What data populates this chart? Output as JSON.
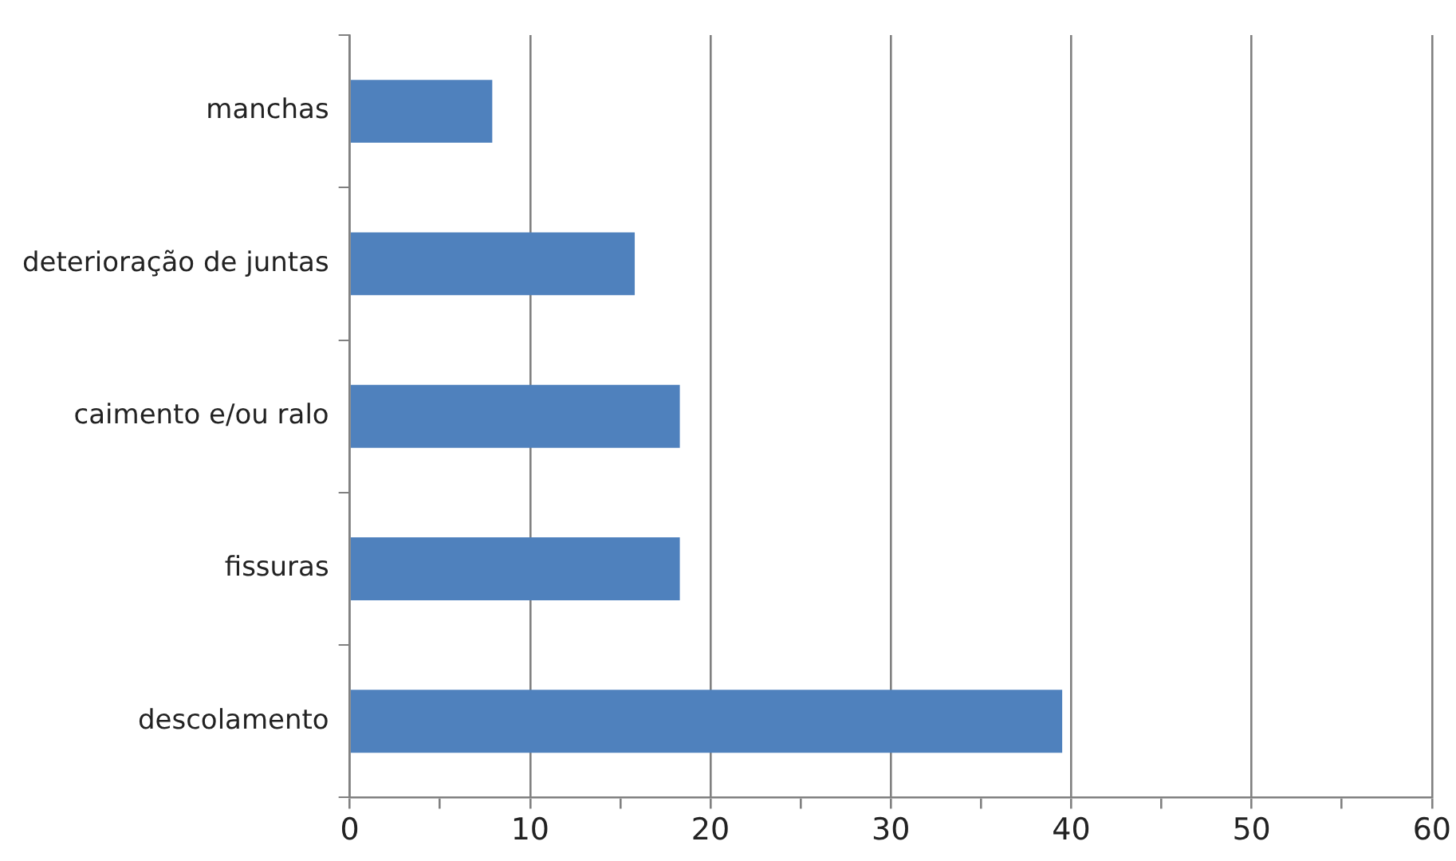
{
  "chart_data": {
    "type": "bar",
    "orientation": "horizontal",
    "categories": [
      "manchas",
      "deterioração de juntas",
      "caimento e/ou ralo",
      "fissuras",
      "descolamento"
    ],
    "values": [
      7.9,
      15.8,
      18.3,
      18.3,
      39.5
    ],
    "color": "#4f81bd",
    "xlim": [
      0,
      60
    ],
    "xticks": [
      0,
      {
        "value": 5,
        "label": null
      },
      10,
      {
        "value": 15,
        "label": null
      },
      20,
      {
        "value": 25,
        "label": null
      },
      30,
      {
        "value": 35,
        "label": null
      },
      40,
      {
        "value": 45,
        "label": null
      },
      50,
      {
        "value": 55,
        "label": null
      },
      60
    ],
    "grid": "x",
    "legend": false
  }
}
